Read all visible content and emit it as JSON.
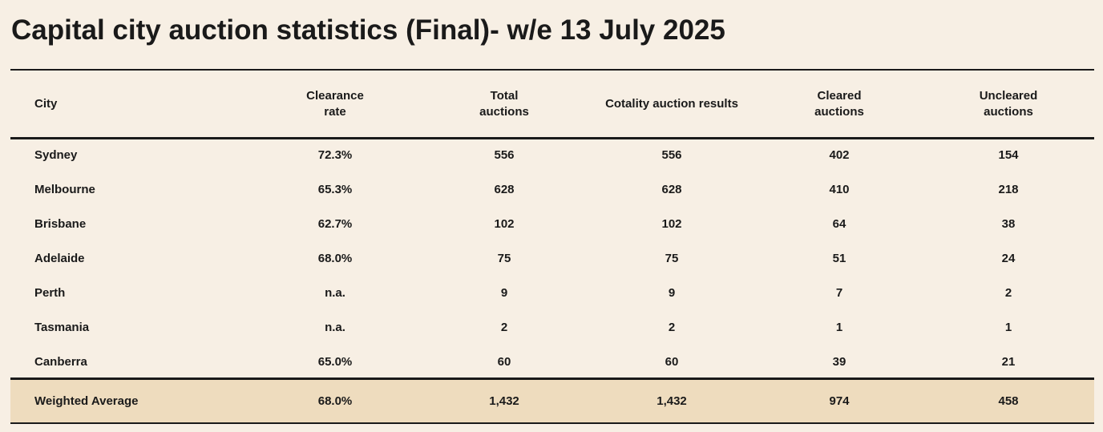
{
  "title": "Capital city auction statistics (Final)- w/e 13 July 2025",
  "columns": {
    "city": "City",
    "clearance_rate": "Clearance\nrate",
    "total_auctions": "Total\nauctions",
    "cotality_results": "Cotality  auction results",
    "cleared_auctions": "Cleared\nauctions",
    "uncleared_auctions": "Uncleared\nauctions"
  },
  "rows": [
    {
      "city": "Sydney",
      "clearance_rate": "72.3%",
      "total_auctions": "556",
      "cotality_results": "556",
      "cleared": "402",
      "uncleared": "154"
    },
    {
      "city": "Melbourne",
      "clearance_rate": "65.3%",
      "total_auctions": "628",
      "cotality_results": "628",
      "cleared": "410",
      "uncleared": "218"
    },
    {
      "city": "Brisbane",
      "clearance_rate": "62.7%",
      "total_auctions": "102",
      "cotality_results": "102",
      "cleared": "64",
      "uncleared": "38"
    },
    {
      "city": "Adelaide",
      "clearance_rate": "68.0%",
      "total_auctions": "75",
      "cotality_results": "75",
      "cleared": "51",
      "uncleared": "24"
    },
    {
      "city": "Perth",
      "clearance_rate": "n.a.",
      "total_auctions": "9",
      "cotality_results": "9",
      "cleared": "7",
      "uncleared": "2"
    },
    {
      "city": "Tasmania",
      "clearance_rate": "n.a.",
      "total_auctions": "2",
      "cotality_results": "2",
      "cleared": "1",
      "uncleared": "1"
    },
    {
      "city": "Canberra",
      "clearance_rate": "65.0%",
      "total_auctions": "60",
      "cotality_results": "60",
      "cleared": "39",
      "uncleared": "21"
    }
  ],
  "total": {
    "city": "Weighted Average",
    "clearance_rate": "68.0%",
    "total_auctions": "1,432",
    "cotality_results": "1,432",
    "cleared": "974",
    "uncleared": "458"
  },
  "colors": {
    "background": "#f7efe4",
    "total_band": "#eedcbe",
    "text": "#1a1a1a"
  }
}
